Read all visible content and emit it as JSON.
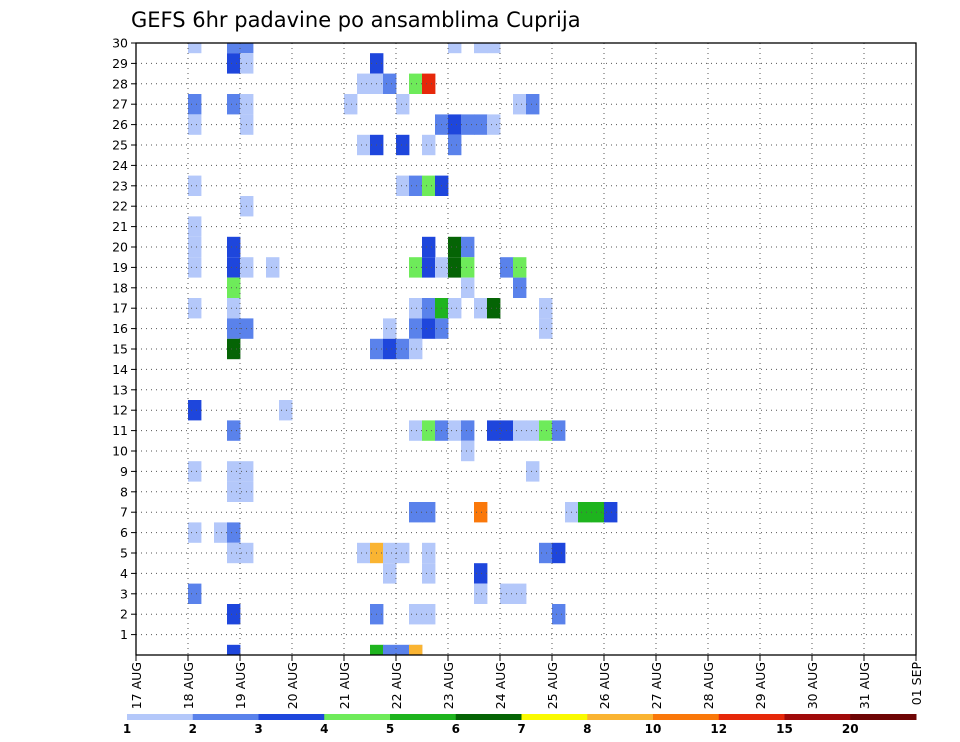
{
  "chart_data": {
    "type": "heatmap",
    "title": "GEFS 6hr padavine po ansamblima Cuprija",
    "xlabel": "",
    "ylabel": "",
    "x_tick_labels": [
      "17 AUG",
      "18 AUG",
      "19 AUG",
      "20 AUG",
      "21 AUG",
      "22 AUG",
      "23 AUG",
      "24 AUG",
      "25 AUG",
      "26 AUG",
      "27 AUG",
      "28 AUG",
      "29 AUG",
      "30 AUG",
      "31 AUG",
      "01 SEP"
    ],
    "y_tick_labels": [
      "1",
      "2",
      "3",
      "4",
      "5",
      "6",
      "7",
      "8",
      "9",
      "10",
      "11",
      "12",
      "13",
      "14",
      "15",
      "16",
      "17",
      "18",
      "19",
      "20",
      "21",
      "22",
      "23",
      "24",
      "25",
      "26",
      "27",
      "28",
      "29",
      "30"
    ],
    "ylim": [
      0,
      30
    ],
    "x_steps_per_day": 4,
    "grid": true,
    "legend_placement": "bottom",
    "legend": {
      "boundaries": [
        "1",
        "2",
        "3",
        "4",
        "5",
        "6",
        "7",
        "8",
        "10",
        "12",
        "15",
        "20"
      ],
      "colors": [
        "#b4c8fa",
        "#5a82eb",
        "#1e46dc",
        "#6eeb5a",
        "#1eb41e",
        "#056405",
        "#fafa00",
        "#fab432",
        "#fa780a",
        "#e6280a",
        "#a00a0a",
        "#6e0505"
      ]
    },
    "cells": [
      [
        4,
        30,
        0
      ],
      [
        7,
        30,
        1
      ],
      [
        8,
        30,
        1
      ],
      [
        24,
        30,
        0
      ],
      [
        26,
        30,
        0
      ],
      [
        27,
        30,
        0
      ],
      [
        7,
        29,
        2
      ],
      [
        8,
        29,
        0
      ],
      [
        18,
        29,
        2
      ],
      [
        17,
        28,
        0
      ],
      [
        18,
        28,
        0
      ],
      [
        19,
        28,
        1
      ],
      [
        21,
        28,
        3
      ],
      [
        22,
        28,
        9
      ],
      [
        4,
        27,
        1
      ],
      [
        7,
        27,
        1
      ],
      [
        8,
        27,
        0
      ],
      [
        16,
        27,
        0
      ],
      [
        20,
        27,
        0
      ],
      [
        29,
        27,
        0
      ],
      [
        30,
        27,
        1
      ],
      [
        4,
        26,
        0
      ],
      [
        8,
        26,
        0
      ],
      [
        23,
        26,
        1
      ],
      [
        24,
        26,
        2
      ],
      [
        25,
        26,
        1
      ],
      [
        26,
        26,
        1
      ],
      [
        27,
        26,
        0
      ],
      [
        17,
        25,
        0
      ],
      [
        18,
        25,
        2
      ],
      [
        20,
        25,
        2
      ],
      [
        22,
        25,
        0
      ],
      [
        24,
        25,
        1
      ],
      [
        4,
        23,
        0
      ],
      [
        20,
        23,
        0
      ],
      [
        21,
        23,
        1
      ],
      [
        22,
        23,
        3
      ],
      [
        23,
        23,
        2
      ],
      [
        8,
        22,
        0
      ],
      [
        4,
        21,
        0
      ],
      [
        4,
        20,
        0
      ],
      [
        7,
        20,
        2
      ],
      [
        22,
        20,
        2
      ],
      [
        24,
        20,
        5
      ],
      [
        25,
        20,
        1
      ],
      [
        4,
        19,
        0
      ],
      [
        7,
        19,
        2
      ],
      [
        8,
        19,
        0
      ],
      [
        10,
        19,
        0
      ],
      [
        21,
        19,
        3
      ],
      [
        22,
        19,
        2
      ],
      [
        23,
        19,
        0
      ],
      [
        24,
        19,
        5
      ],
      [
        25,
        19,
        3
      ],
      [
        28,
        19,
        1
      ],
      [
        29,
        19,
        3
      ],
      [
        7,
        18,
        3
      ],
      [
        25,
        18,
        0
      ],
      [
        29,
        18,
        1
      ],
      [
        4,
        17,
        0
      ],
      [
        7,
        17,
        0
      ],
      [
        21,
        17,
        0
      ],
      [
        22,
        17,
        1
      ],
      [
        23,
        17,
        4
      ],
      [
        24,
        17,
        0
      ],
      [
        26,
        17,
        0
      ],
      [
        27,
        17,
        5
      ],
      [
        31,
        17,
        0
      ],
      [
        7,
        16,
        1
      ],
      [
        8,
        16,
        1
      ],
      [
        19,
        16,
        0
      ],
      [
        21,
        16,
        1
      ],
      [
        22,
        16,
        2
      ],
      [
        23,
        16,
        1
      ],
      [
        31,
        16,
        0
      ],
      [
        7,
        15,
        5
      ],
      [
        18,
        15,
        1
      ],
      [
        19,
        15,
        2
      ],
      [
        20,
        15,
        1
      ],
      [
        21,
        15,
        0
      ],
      [
        4,
        12,
        2
      ],
      [
        11,
        12,
        0
      ],
      [
        7,
        11,
        1
      ],
      [
        21,
        11,
        0
      ],
      [
        22,
        11,
        3
      ],
      [
        23,
        11,
        1
      ],
      [
        24,
        11,
        0
      ],
      [
        25,
        11,
        1
      ],
      [
        27,
        11,
        2
      ],
      [
        28,
        11,
        2
      ],
      [
        29,
        11,
        0
      ],
      [
        30,
        11,
        0
      ],
      [
        31,
        11,
        3
      ],
      [
        32,
        11,
        1
      ],
      [
        25,
        10,
        0
      ],
      [
        4,
        9,
        0
      ],
      [
        7,
        9,
        0
      ],
      [
        8,
        9,
        0
      ],
      [
        30,
        9,
        0
      ],
      [
        7,
        8,
        0
      ],
      [
        8,
        8,
        0
      ],
      [
        21,
        7,
        1
      ],
      [
        22,
        7,
        1
      ],
      [
        26,
        7,
        8
      ],
      [
        33,
        7,
        0
      ],
      [
        34,
        7,
        4
      ],
      [
        35,
        7,
        4
      ],
      [
        36,
        7,
        2
      ],
      [
        4,
        6,
        0
      ],
      [
        6,
        6,
        0
      ],
      [
        7,
        6,
        1
      ],
      [
        7,
        5,
        0
      ],
      [
        8,
        5,
        0
      ],
      [
        17,
        5,
        0
      ],
      [
        18,
        5,
        7
      ],
      [
        19,
        5,
        0
      ],
      [
        20,
        5,
        0
      ],
      [
        22,
        5,
        0
      ],
      [
        31,
        5,
        1
      ],
      [
        32,
        5,
        2
      ],
      [
        19,
        4,
        0
      ],
      [
        22,
        4,
        0
      ],
      [
        26,
        4,
        2
      ],
      [
        4,
        3,
        1
      ],
      [
        26,
        3,
        0
      ],
      [
        28,
        3,
        0
      ],
      [
        29,
        3,
        0
      ],
      [
        7,
        2,
        2
      ],
      [
        18,
        2,
        1
      ],
      [
        21,
        2,
        0
      ],
      [
        22,
        2,
        0
      ],
      [
        32,
        2,
        1
      ],
      [
        7,
        0,
        2
      ],
      [
        18,
        0,
        4
      ],
      [
        19,
        0,
        1
      ],
      [
        20,
        0,
        1
      ],
      [
        21,
        0,
        0
      ],
      [
        21,
        0,
        7
      ]
    ]
  }
}
